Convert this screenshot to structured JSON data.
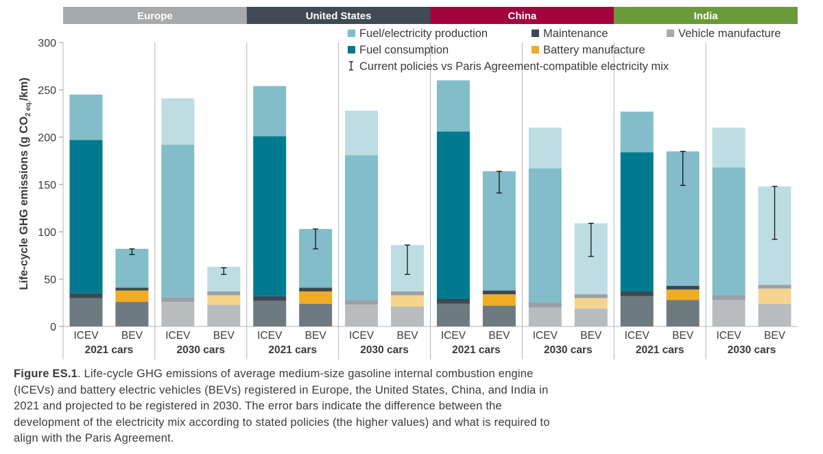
{
  "chart_data": {
    "type": "bar",
    "stacked": true,
    "ylabel": "Life-cycle GHG emissions (g CO2 eq./km)",
    "ylabel_main": "Life-cycle GHG emissions (g CO",
    "ylabel_sub": "2 eq.",
    "ylabel_tail": "/km)",
    "ylim": [
      0,
      300
    ],
    "yticks": [
      0,
      50,
      100,
      150,
      200,
      250,
      300
    ],
    "regions": [
      {
        "name": "Europe",
        "color": "#a8a9ab"
      },
      {
        "name": "United States",
        "color": "#3f4a54"
      },
      {
        "name": "China",
        "color": "#a3023c"
      },
      {
        "name": "India",
        "color": "#6a9a3a"
      }
    ],
    "groups": [
      "2021 cars",
      "2030 cars"
    ],
    "categories": [
      "ICEV",
      "BEV"
    ],
    "legend": {
      "items": [
        {
          "label": "Fuel/electricity production",
          "color": "#82bdc9"
        },
        {
          "label": "Maintenance",
          "color": "#3d4852"
        },
        {
          "label": "Vehicle manufacture",
          "color": "#a9acae"
        },
        {
          "label": "Fuel consumption",
          "color": "#007a8f"
        },
        {
          "label": "Battery manufacture",
          "color": "#f0ac22"
        }
      ],
      "error_label": "Current policies vs Paris Agreement-compatible electricity mix"
    },
    "bars": [
      {
        "region": "Europe",
        "group": "2021 cars",
        "category": "ICEV",
        "vehicle": 30,
        "battery": 0,
        "maintenance": 5,
        "fuel_consumption": 162,
        "fuel_production": 48,
        "total": 245,
        "error": null
      },
      {
        "region": "Europe",
        "group": "2021 cars",
        "category": "BEV",
        "vehicle": 26,
        "battery": 12,
        "maintenance": 3,
        "fuel_consumption": 0,
        "fuel_production": 41,
        "total": 82,
        "error": [
          76,
          82
        ]
      },
      {
        "region": "Europe",
        "group": "2030 cars",
        "category": "ICEV",
        "vehicle": 26,
        "battery": 0,
        "maintenance": 5,
        "fuel_consumption": 161,
        "fuel_production": 49,
        "total": 241,
        "error": null
      },
      {
        "region": "Europe",
        "group": "2030 cars",
        "category": "BEV",
        "vehicle": 23,
        "battery": 10,
        "maintenance": 4,
        "fuel_consumption": 0,
        "fuel_production": 26,
        "total": 63,
        "error": [
          55,
          62
        ]
      },
      {
        "region": "United States",
        "group": "2021 cars",
        "category": "ICEV",
        "vehicle": 27,
        "battery": 0,
        "maintenance": 5,
        "fuel_consumption": 169,
        "fuel_production": 53,
        "total": 254,
        "error": null
      },
      {
        "region": "United States",
        "group": "2021 cars",
        "category": "BEV",
        "vehicle": 24,
        "battery": 13,
        "maintenance": 4,
        "fuel_consumption": 0,
        "fuel_production": 62,
        "total": 103,
        "error": [
          82,
          103
        ]
      },
      {
        "region": "United States",
        "group": "2030 cars",
        "category": "ICEV",
        "vehicle": 23,
        "battery": 0,
        "maintenance": 5,
        "fuel_consumption": 153,
        "fuel_production": 47,
        "total": 228,
        "error": null
      },
      {
        "region": "United States",
        "group": "2030 cars",
        "category": "BEV",
        "vehicle": 21,
        "battery": 12,
        "maintenance": 4,
        "fuel_consumption": 0,
        "fuel_production": 49,
        "total": 86,
        "error": [
          55,
          86
        ]
      },
      {
        "region": "China",
        "group": "2021 cars",
        "category": "ICEV",
        "vehicle": 24,
        "battery": 0,
        "maintenance": 5,
        "fuel_consumption": 177,
        "fuel_production": 54,
        "total": 260,
        "error": null
      },
      {
        "region": "China",
        "group": "2021 cars",
        "category": "BEV",
        "vehicle": 22,
        "battery": 12,
        "maintenance": 4,
        "fuel_consumption": 0,
        "fuel_production": 126,
        "total": 164,
        "error": [
          141,
          164
        ]
      },
      {
        "region": "China",
        "group": "2030 cars",
        "category": "ICEV",
        "vehicle": 20,
        "battery": 0,
        "maintenance": 5,
        "fuel_consumption": 142,
        "fuel_production": 43,
        "total": 210,
        "error": null
      },
      {
        "region": "China",
        "group": "2030 cars",
        "category": "BEV",
        "vehicle": 19,
        "battery": 11,
        "maintenance": 4,
        "fuel_consumption": 0,
        "fuel_production": 75,
        "total": 109,
        "error": [
          74,
          109
        ]
      },
      {
        "region": "India",
        "group": "2021 cars",
        "category": "ICEV",
        "vehicle": 32,
        "battery": 0,
        "maintenance": 5,
        "fuel_consumption": 147,
        "fuel_production": 43,
        "total": 227,
        "error": null
      },
      {
        "region": "India",
        "group": "2021 cars",
        "category": "BEV",
        "vehicle": 28,
        "battery": 11,
        "maintenance": 4,
        "fuel_consumption": 0,
        "fuel_production": 142,
        "total": 185,
        "error": [
          149,
          185
        ]
      },
      {
        "region": "India",
        "group": "2030 cars",
        "category": "ICEV",
        "vehicle": 28,
        "battery": 0,
        "maintenance": 5,
        "fuel_consumption": 135,
        "fuel_production": 42,
        "total": 210,
        "error": null
      },
      {
        "region": "India",
        "group": "2030 cars",
        "category": "BEV",
        "vehicle": 24,
        "battery": 16,
        "maintenance": 4,
        "fuel_consumption": 0,
        "fuel_production": 104,
        "total": 148,
        "error": [
          92,
          148
        ]
      }
    ],
    "segment_order": [
      "vehicle",
      "battery",
      "maintenance",
      "fuel_consumption",
      "fuel_production"
    ],
    "colors_2021": {
      "vehicle": "#6e7a82",
      "battery": "#f0ac22",
      "maintenance": "#3d4852",
      "fuel_consumption": "#007a8f",
      "fuel_production": "#82bdc9"
    },
    "colors_2030": {
      "vehicle": "#b9bcbf",
      "battery": "#f7d48e",
      "maintenance": "#9aa0a5",
      "fuel_consumption": "#82bdc9",
      "fuel_production": "#bddde3"
    }
  },
  "caption": {
    "label": "Figure ES.1",
    "text": ". Life-cycle GHG emissions of average medium-size gasoline internal combustion engine (ICEVs) and battery electric vehicles (BEVs) registered in Europe, the United States, China, and India in 2021 and projected to be registered in 2030. The error bars indicate the difference between the development of the electricity mix according to stated policies (the higher values) and what is required to align with the Paris Agreement."
  }
}
